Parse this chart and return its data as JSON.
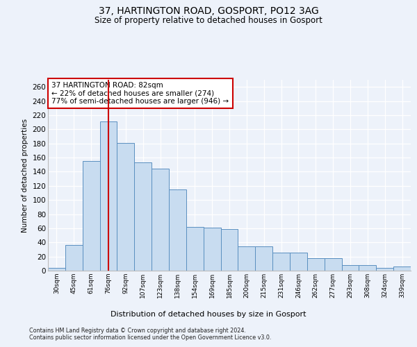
{
  "title1": "37, HARTINGTON ROAD, GOSPORT, PO12 3AG",
  "title2": "Size of property relative to detached houses in Gosport",
  "xlabel": "Distribution of detached houses by size in Gosport",
  "ylabel": "Number of detached properties",
  "categories": [
    "30sqm",
    "45sqm",
    "61sqm",
    "76sqm",
    "92sqm",
    "107sqm",
    "123sqm",
    "138sqm",
    "154sqm",
    "169sqm",
    "185sqm",
    "200sqm",
    "215sqm",
    "231sqm",
    "246sqm",
    "262sqm",
    "277sqm",
    "293sqm",
    "308sqm",
    "324sqm",
    "339sqm"
  ],
  "values": [
    4,
    36,
    155,
    211,
    181,
    153,
    144,
    115,
    62,
    61,
    59,
    34,
    34,
    26,
    26,
    18,
    18,
    8,
    8,
    4,
    6
  ],
  "bar_color": "#c8dcf0",
  "bar_edge_color": "#5a8fc0",
  "property_bin_index": 3,
  "vline_color": "#cc0000",
  "annotation_line1": "37 HARTINGTON ROAD: 82sqm",
  "annotation_line2": "← 22% of detached houses are smaller (274)",
  "annotation_line3": "77% of semi-detached houses are larger (946) →",
  "annotation_box_facecolor": "#ffffff",
  "annotation_box_edgecolor": "#cc0000",
  "ylim": [
    0,
    270
  ],
  "yticks": [
    0,
    20,
    40,
    60,
    80,
    100,
    120,
    140,
    160,
    180,
    200,
    220,
    240,
    260
  ],
  "bg_color": "#edf2fa",
  "grid_color": "#ffffff",
  "footer1": "Contains HM Land Registry data © Crown copyright and database right 2024.",
  "footer2": "Contains public sector information licensed under the Open Government Licence v3.0."
}
